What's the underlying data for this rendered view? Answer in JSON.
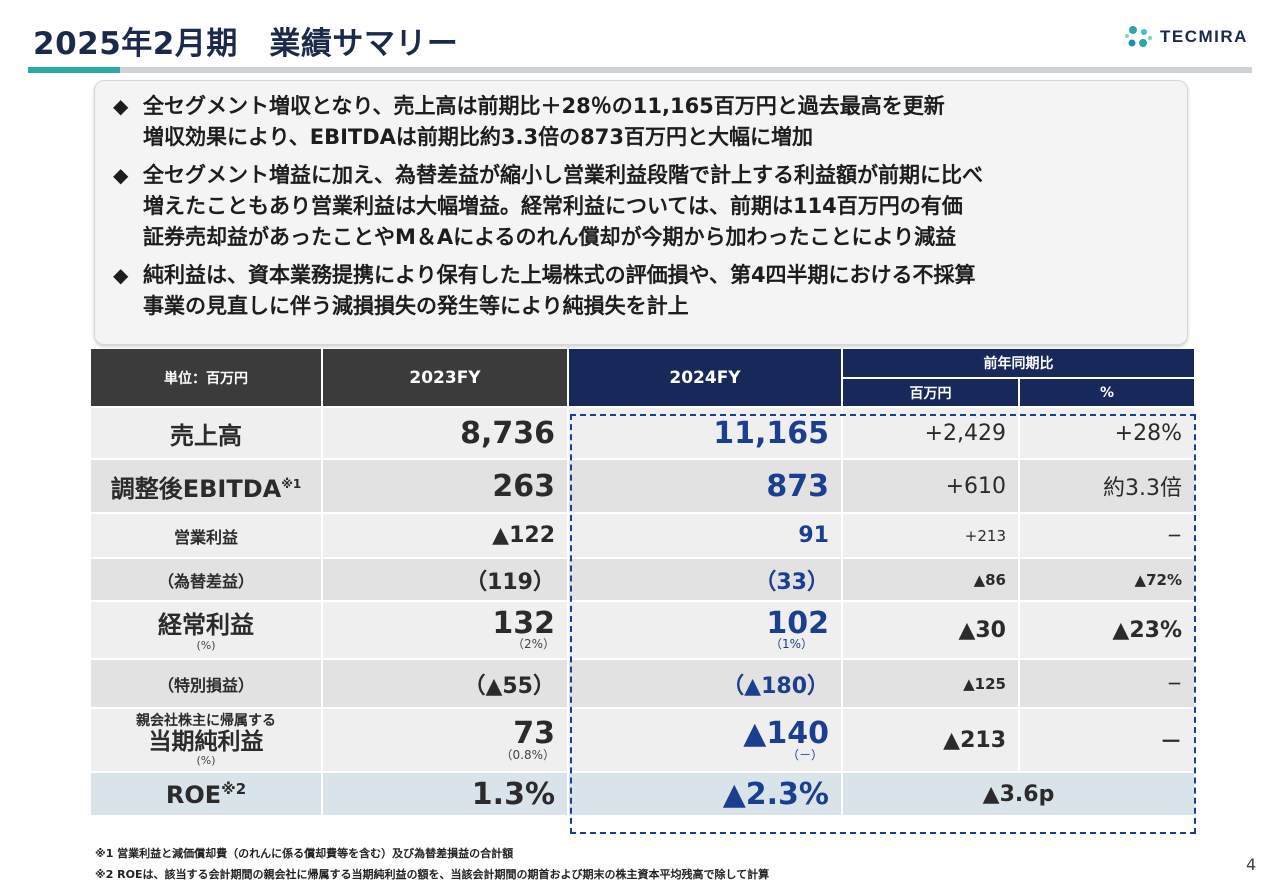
{
  "header": {
    "title": "2025年2月期　業績サマリー",
    "logo_text": "TECMIRA",
    "logo_icon": "molecule-logo-icon",
    "colors": {
      "navy": "#16295a",
      "teal": "#2aa9a4",
      "blue_value": "#1a3f8f"
    }
  },
  "summary": {
    "bullet_symbol": "◆",
    "bullets": [
      {
        "lines": [
          "全セグメント増収となり、売上高は前期比＋28％の11,165百万円と過去最高を更新",
          "増収効果により、EBITDAは前期比約3.3倍の873百万円と大幅に増加"
        ]
      },
      {
        "lines": [
          "全セグメント増益に加え、為替差益が縮小し営業利益段階で計上する利益額が前期に比べ",
          "増えたこともあり営業利益は大幅増益。経常利益については、前期は114百万円の有価",
          "証券売却益があったことやM＆Aによるのれん償却が今期から加わったことにより減益"
        ]
      },
      {
        "lines": [
          "純利益は、資本業務提携により保有した上場株式の評価損や、第4四半期における不採算",
          "事業の見直しに伴う減損損失の発生等により純損失を計上"
        ]
      }
    ]
  },
  "table": {
    "unit_label": "単位：百万円",
    "col_prev": "2023FY",
    "col_cur": "2024FY",
    "col_yoy": "前年同期比",
    "col_yoy_amount": "百万円",
    "col_yoy_pct": "%",
    "rows": [
      {
        "label": "売上高",
        "prev": "8,736",
        "cur": "11,165",
        "diff": "+2,429",
        "pct": "+28%"
      },
      {
        "label": "調整後EBITDA",
        "label_note": "※1",
        "prev": "263",
        "cur": "873",
        "diff": "+610",
        "pct": "約3.3倍"
      },
      {
        "label": "営業利益",
        "prev": "▲122",
        "cur": "91",
        "diff": "+213",
        "pct": "－"
      },
      {
        "label": "（為替差益）",
        "prev": "（119）",
        "cur": "（33）",
        "diff": "▲86",
        "pct": "▲72%"
      },
      {
        "label": "経常利益",
        "label_sub": "(%)",
        "prev": "132",
        "prev_sub": "（2%）",
        "cur": "102",
        "cur_sub": "（1%）",
        "diff": "▲30",
        "pct": "▲23%"
      },
      {
        "label": "（特別損益）",
        "prev": "（▲55）",
        "cur": "（▲180）",
        "diff": "▲125",
        "pct": "－"
      },
      {
        "label_top": "親会社株主に帰属する",
        "label": "当期純利益",
        "label_sub": "(%)",
        "prev": "73",
        "prev_sub": "（0.8%）",
        "cur": "▲140",
        "cur_sub": "（－）",
        "diff": "▲213",
        "pct": "－"
      },
      {
        "label": "ROE",
        "label_note": "※2",
        "prev": "1.3%",
        "cur": "▲2.3%",
        "diff": "▲3.6p"
      }
    ]
  },
  "footnotes": [
    "※1 営業利益と減価償却費（のれんに係る償却費等を含む）及び為替差損益の合計額",
    "※2 ROEは、該当する会計期間の親会社に帰属する当期純利益の額を、当該会計期間の期首および期末の株主資本平均残高で除して計算"
  ],
  "page_number": "4"
}
